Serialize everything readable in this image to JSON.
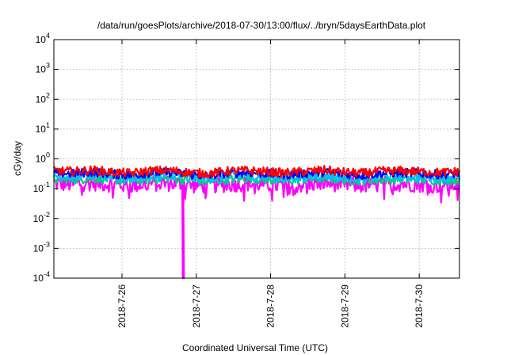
{
  "chart_data": {
    "type": "line",
    "title": "/data/run/goesPlots/archive/2018-07-30/13:00/flux/../bryn/5daysEarthData.plot",
    "xlabel": "Coordinated Universal Time (UTC)",
    "ylabel": "cGy/day",
    "y_scale": "log",
    "ylim": [
      0.0001,
      10000
    ],
    "y_ticks": [
      {
        "value": 0.0001,
        "base": "10",
        "exp": "-4"
      },
      {
        "value": 0.001,
        "base": "10",
        "exp": "-3"
      },
      {
        "value": 0.01,
        "base": "10",
        "exp": "-2"
      },
      {
        "value": 0.1,
        "base": "10",
        "exp": "-1"
      },
      {
        "value": 1,
        "base": "10",
        "exp": "0"
      },
      {
        "value": 10,
        "base": "10",
        "exp": "1"
      },
      {
        "value": 100,
        "base": "10",
        "exp": "2"
      },
      {
        "value": 1000,
        "base": "10",
        "exp": "3"
      },
      {
        "value": 10000,
        "base": "10",
        "exp": "4"
      }
    ],
    "xlim": [
      "2018-07-25 02:00",
      "2018-07-30 13:00"
    ],
    "x_ticks": [
      {
        "label": "2018-7-26",
        "value": "2018-07-26 00:00"
      },
      {
        "label": "2018-7-27",
        "value": "2018-07-27 00:00"
      },
      {
        "label": "2018-7-28",
        "value": "2018-07-28 00:00"
      },
      {
        "label": "2018-7-29",
        "value": "2018-07-29 00:00"
      },
      {
        "label": "2018-7-30",
        "value": "2018-07-30 00:00"
      }
    ],
    "grid": true,
    "series": [
      {
        "color": "#ff0000",
        "level": [
          0.4,
          0.38,
          0.42,
          0.36,
          0.33,
          0.4,
          0.41,
          0.35,
          0.32,
          0.39,
          0.41,
          0.37,
          0.34,
          0.38,
          0.42,
          0.36,
          0.33,
          0.39,
          0.4,
          0.37,
          0.35,
          0.38
        ]
      },
      {
        "color": "#0000ff",
        "level": [
          0.34,
          0.32,
          0.36,
          0.31,
          0.28,
          0.34,
          0.35,
          0.3,
          0.27,
          0.33,
          0.35,
          0.32,
          0.29,
          0.33,
          0.36,
          0.31,
          0.28,
          0.33,
          0.34,
          0.32,
          0.3,
          0.33
        ]
      },
      {
        "color": "#00bfff",
        "level": [
          0.27,
          0.26,
          0.29,
          0.25,
          0.23,
          0.27,
          0.28,
          0.24,
          0.22,
          0.26,
          0.28,
          0.25,
          0.23,
          0.26,
          0.28,
          0.25,
          0.23,
          0.26,
          0.27,
          0.25,
          0.24,
          0.26
        ]
      },
      {
        "color": "#00cc88",
        "level": [
          0.21,
          0.2,
          0.22,
          0.2,
          0.18,
          0.21,
          0.22,
          0.19,
          0.17,
          0.2,
          0.22,
          0.2,
          0.18,
          0.2,
          0.22,
          0.2,
          0.18,
          0.2,
          0.21,
          0.2,
          0.19,
          0.2
        ]
      },
      {
        "color": "#ff00ff",
        "level": [
          0.15,
          0.14,
          0.16,
          0.14,
          0.13,
          0.15,
          0.15,
          0.0001,
          0.13,
          0.14,
          0.15,
          0.14,
          0.12,
          0.14,
          0.16,
          0.14,
          0.13,
          0.14,
          0.15,
          0.14,
          0.13,
          0.14
        ]
      }
    ],
    "dip": {
      "series": 4,
      "time": "2018-07-26 19:45",
      "value": 0.0001
    }
  }
}
